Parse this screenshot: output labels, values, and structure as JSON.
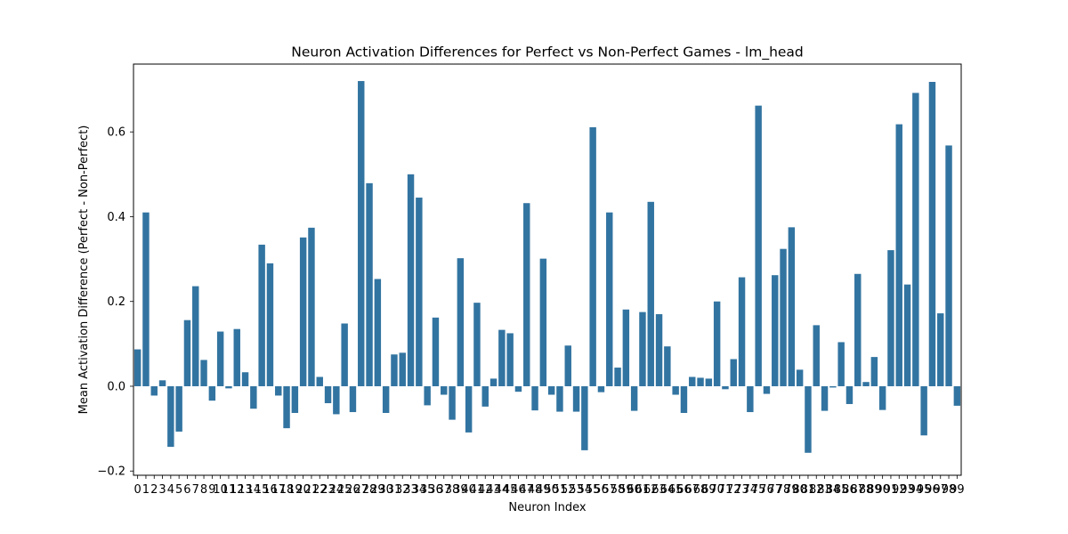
{
  "chart_data": {
    "type": "bar",
    "title": "Neuron Activation Differences for Perfect vs Non-Perfect Games - lm_head",
    "xlabel": "Neuron Index",
    "ylabel": "Mean Activation Difference (Perfect - Non-Perfect)",
    "ylim": [
      -0.21,
      0.76
    ],
    "yticks": [
      -0.2,
      0.0,
      0.2,
      0.4,
      0.6
    ],
    "ytick_labels": [
      "−0.2",
      "0.0",
      "0.2",
      "0.4",
      "0.6"
    ],
    "grid": false,
    "legend": "none",
    "bar_color": "#3274a1",
    "categories": [
      "0",
      "1",
      "2",
      "3",
      "4",
      "5",
      "6",
      "7",
      "8",
      "9",
      "10",
      "11",
      "12",
      "13",
      "14",
      "15",
      "16",
      "17",
      "18",
      "19",
      "20",
      "21",
      "22",
      "23",
      "24",
      "25",
      "26",
      "27",
      "28",
      "29",
      "30",
      "31",
      "32",
      "33",
      "34",
      "35",
      "36",
      "37",
      "38",
      "39",
      "40",
      "41",
      "42",
      "43",
      "44",
      "45",
      "46",
      "47",
      "48",
      "49",
      "50",
      "51",
      "52",
      "53",
      "54",
      "55",
      "56",
      "57",
      "58",
      "59",
      "60",
      "61",
      "62",
      "63",
      "64",
      "65",
      "66",
      "67",
      "68",
      "69",
      "70",
      "71",
      "72",
      "73",
      "74",
      "75",
      "76",
      "77",
      "78",
      "79",
      "80",
      "81",
      "82",
      "83",
      "84",
      "85",
      "86",
      "87",
      "88",
      "89",
      "90",
      "91",
      "92",
      "93",
      "94",
      "95",
      "96",
      "97",
      "98",
      "99"
    ],
    "values": [
      0.087,
      0.41,
      -0.022,
      0.014,
      -0.143,
      -0.107,
      0.156,
      0.236,
      0.062,
      -0.034,
      0.129,
      -0.005,
      0.135,
      0.033,
      -0.053,
      0.334,
      0.29,
      -0.022,
      -0.099,
      -0.063,
      0.351,
      0.374,
      0.022,
      -0.04,
      -0.066,
      0.148,
      -0.061,
      0.72,
      0.479,
      0.253,
      -0.063,
      0.075,
      0.079,
      0.5,
      0.445,
      -0.045,
      0.162,
      -0.02,
      -0.079,
      0.302,
      -0.109,
      0.197,
      -0.048,
      0.018,
      0.133,
      0.125,
      -0.013,
      0.432,
      -0.057,
      0.301,
      -0.02,
      -0.06,
      0.096,
      -0.06,
      -0.151,
      0.611,
      -0.014,
      0.41,
      0.044,
      0.181,
      -0.058,
      0.175,
      0.435,
      0.17,
      0.094,
      -0.02,
      -0.063,
      0.022,
      0.02,
      0.018,
      0.2,
      -0.007,
      0.064,
      0.257,
      -0.061,
      0.662,
      -0.018,
      0.262,
      0.324,
      0.375,
      0.039,
      -0.157,
      0.144,
      -0.058,
      -0.003,
      0.104,
      -0.042,
      0.265,
      0.01,
      0.069,
      -0.056,
      0.321,
      0.618,
      0.24,
      0.692,
      -0.116,
      0.718,
      0.172,
      0.568,
      -0.046
    ]
  }
}
